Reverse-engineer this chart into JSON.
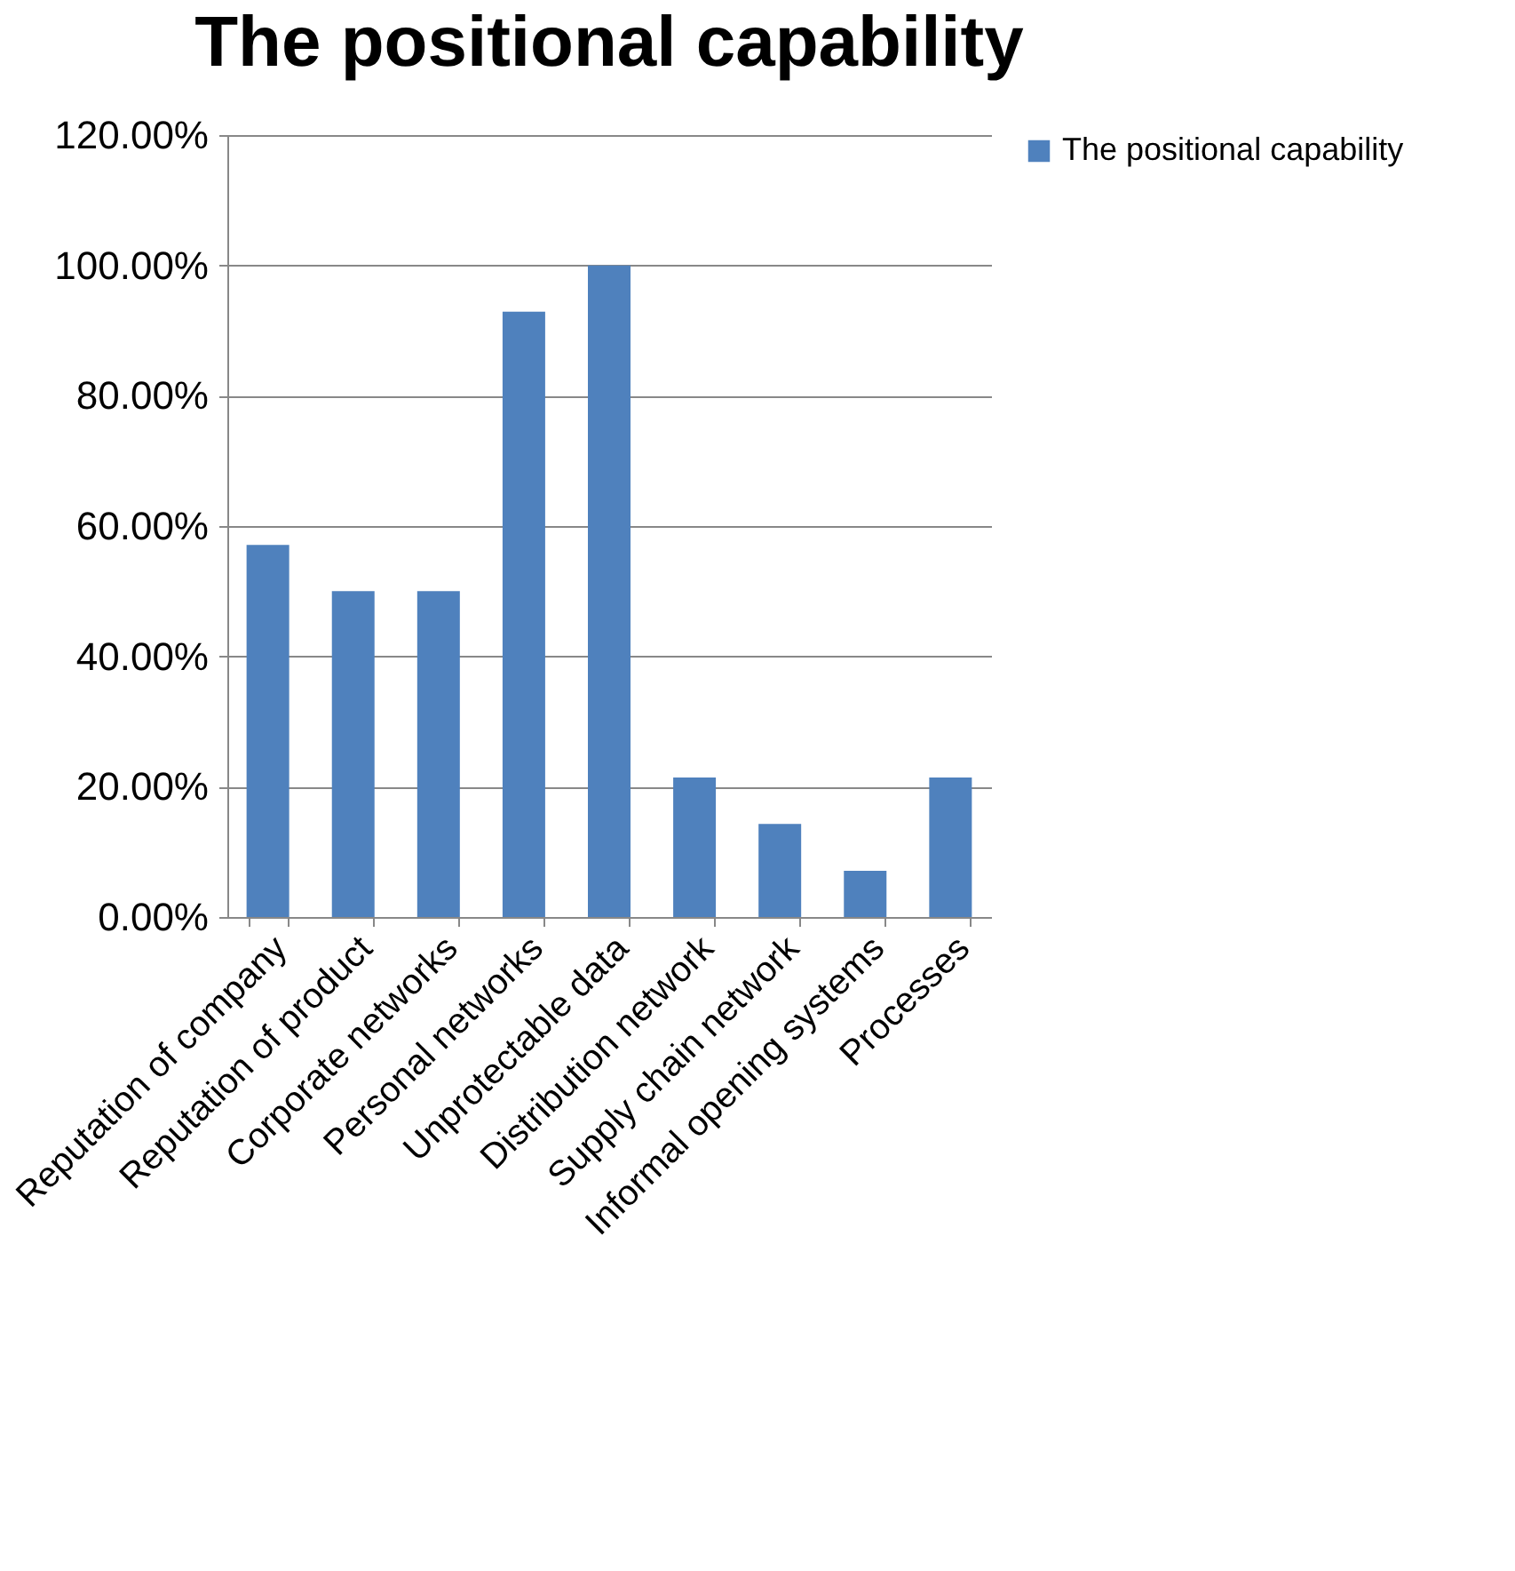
{
  "chart_data": {
    "type": "bar",
    "title": "The positional capability",
    "categories": [
      "Reputation of company",
      "Reputation of product",
      "Corporate networks",
      "Personal networks",
      "Unprotectable data",
      "Distribution network",
      "Supply chain network",
      "Informal opening systems",
      "Processes"
    ],
    "series": [
      {
        "name": "The positional capability",
        "color": "#4f81bd",
        "values": [
          57.1,
          50,
          50,
          92.9,
          100,
          21.4,
          14.3,
          7.1,
          21.4
        ]
      }
    ],
    "ylim": [
      0,
      120
    ],
    "yticks": [
      {
        "value": 0,
        "label": "0.00%"
      },
      {
        "value": 20,
        "label": "20.00%"
      },
      {
        "value": 40,
        "label": "40.00%"
      },
      {
        "value": 60,
        "label": "60.00%"
      },
      {
        "value": 80,
        "label": "80.00%"
      },
      {
        "value": 100,
        "label": "100.00%"
      },
      {
        "value": 120,
        "label": "120.00%"
      }
    ],
    "grid": "y",
    "legend": "right"
  }
}
